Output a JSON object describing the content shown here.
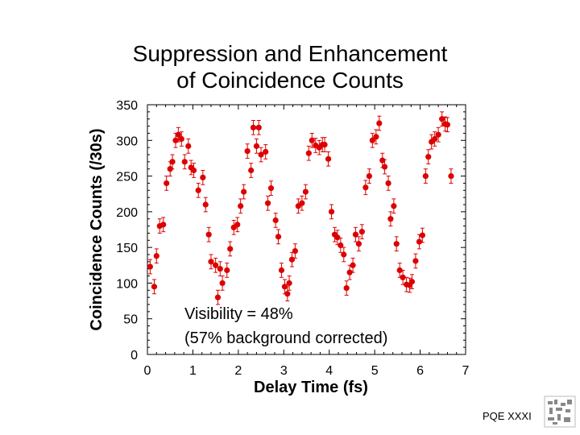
{
  "chart_data": {
    "type": "scatter",
    "title_lines": [
      "Suppression and Enhancement",
      "of Coincidence Counts"
    ],
    "xlabel": "Delay Time (fs)",
    "ylabel": "Coincidence Counts (/30s)",
    "xlim": [
      0,
      7
    ],
    "ylim": [
      0,
      350
    ],
    "xticks": [
      0,
      1,
      2,
      3,
      4,
      5,
      6,
      7
    ],
    "yticks": [
      0,
      50,
      100,
      150,
      200,
      250,
      300,
      350
    ],
    "grid": false,
    "error_bars": true,
    "error_bar_size": 10,
    "marker_color": "#dd0000",
    "annotations": [
      "Visibility = 48%",
      "(57% background corrected)"
    ],
    "x": [
      0.06,
      0.15,
      0.2,
      0.27,
      0.35,
      0.42,
      0.5,
      0.55,
      0.62,
      0.68,
      0.75,
      0.82,
      0.9,
      0.96,
      1.02,
      1.12,
      1.22,
      1.28,
      1.35,
      1.4,
      1.5,
      1.55,
      1.6,
      1.65,
      1.75,
      1.82,
      1.9,
      1.98,
      2.05,
      2.12,
      2.2,
      2.28,
      2.33,
      2.4,
      2.45,
      2.5,
      2.6,
      2.65,
      2.72,
      2.82,
      2.88,
      2.95,
      3.02,
      3.08,
      3.12,
      3.18,
      3.25,
      3.32,
      3.4,
      3.48,
      3.55,
      3.62,
      3.7,
      3.78,
      3.85,
      3.9,
      3.98,
      4.05,
      4.12,
      4.18,
      4.25,
      4.32,
      4.38,
      4.45,
      4.52,
      4.58,
      4.65,
      4.72,
      4.8,
      4.88,
      4.95,
      5.03,
      5.1,
      5.17,
      5.22,
      5.3,
      5.35,
      5.42,
      5.48,
      5.55,
      5.62,
      5.7,
      5.77,
      5.82,
      5.9,
      5.98,
      6.05,
      6.12,
      6.18,
      6.25,
      6.32,
      6.4,
      6.48,
      6.55,
      6.6,
      6.68
    ],
    "y": [
      123,
      95,
      138,
      180,
      182,
      240,
      260,
      270,
      300,
      308,
      302,
      270,
      292,
      262,
      258,
      230,
      248,
      210,
      168,
      130,
      125,
      80,
      120,
      100,
      118,
      148,
      178,
      182,
      208,
      228,
      285,
      258,
      318,
      292,
      318,
      280,
      284,
      212,
      233,
      188,
      165,
      118,
      95,
      85,
      100,
      133,
      145,
      208,
      212,
      228,
      282,
      300,
      293,
      290,
      294,
      294,
      274,
      200,
      168,
      164,
      153,
      140,
      93,
      115,
      125,
      168,
      155,
      172,
      234,
      250,
      300,
      305,
      324,
      272,
      263,
      240,
      190,
      208,
      155,
      118,
      108,
      98,
      97,
      102,
      131,
      158,
      167,
      250,
      277,
      298,
      302,
      308,
      330,
      323,
      322,
      250
    ],
    "series": []
  },
  "footer": {
    "label": "PQE XXXI"
  }
}
